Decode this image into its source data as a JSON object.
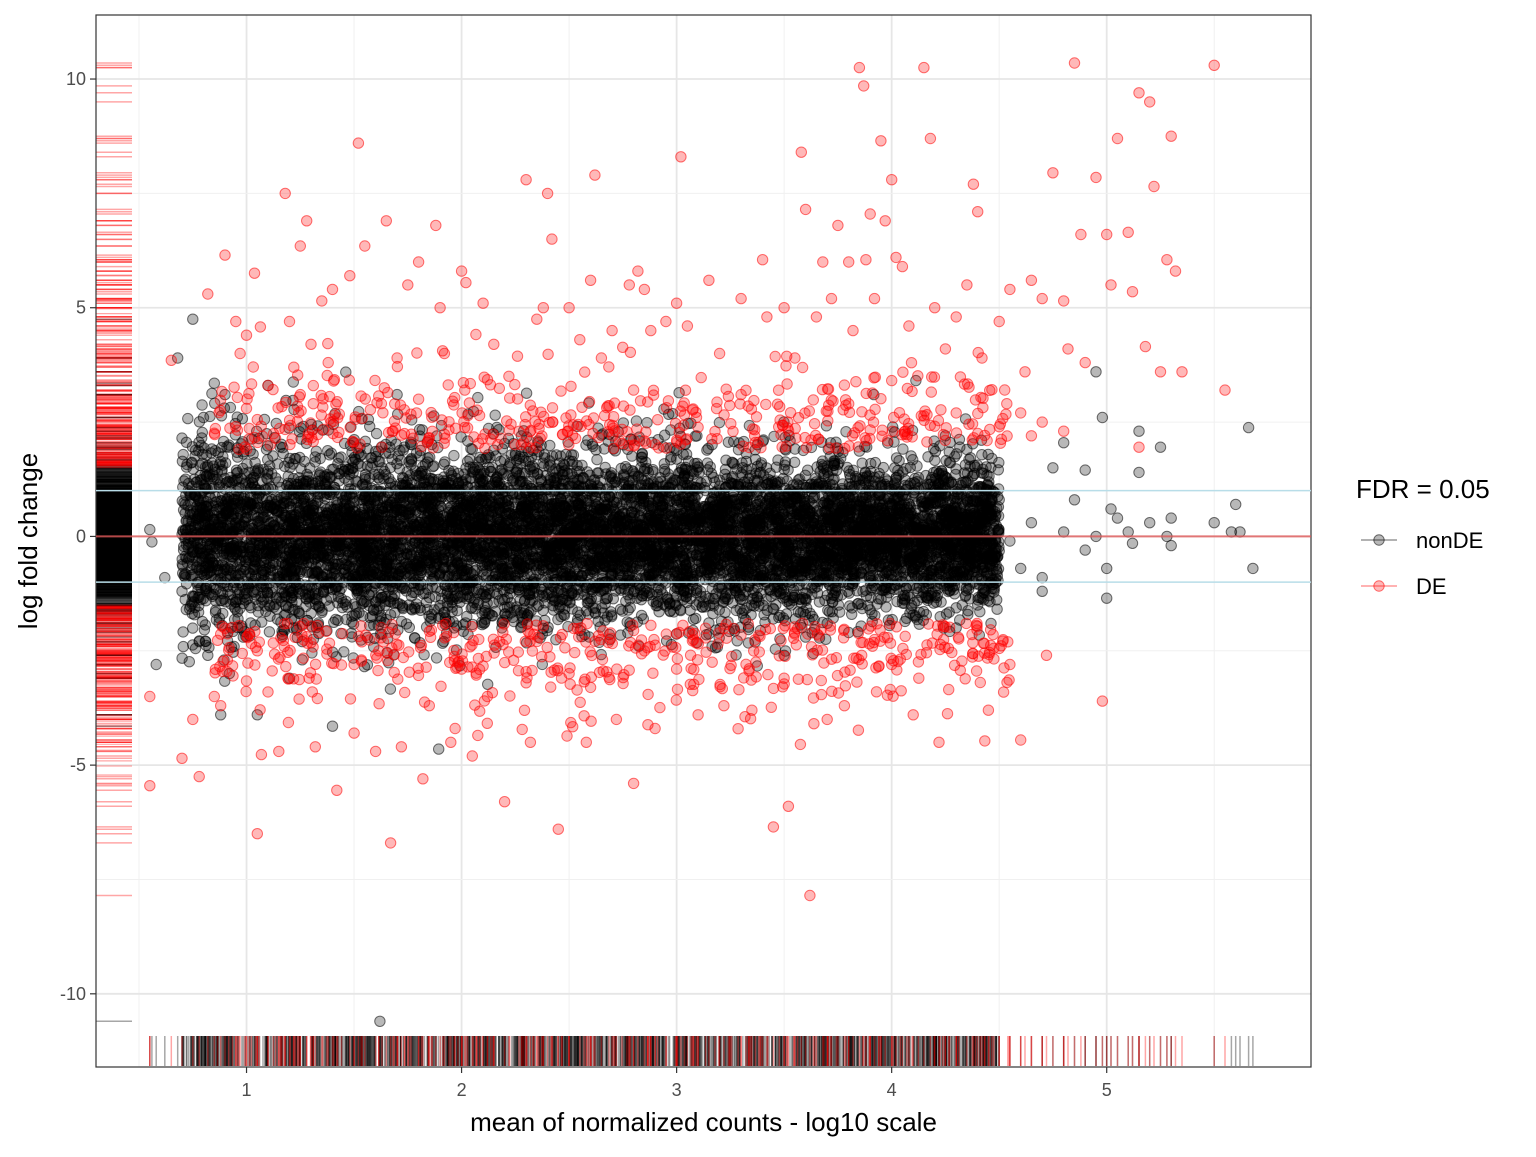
{
  "chart_data": {
    "type": "scatter",
    "xlabel": "mean of normalized counts - log10 scale",
    "ylabel": "log fold change",
    "xlim": [
      0.3,
      5.95
    ],
    "ylim": [
      -11.6,
      11.4
    ],
    "x_ticks": [
      1,
      2,
      3,
      4,
      5
    ],
    "y_ticks": [
      -10,
      -5,
      0,
      5,
      10
    ],
    "x_tick_labels": [
      "1",
      "2",
      "3",
      "4",
      "5"
    ],
    "y_tick_labels": [
      "-10",
      "-5",
      "0",
      "5",
      "10"
    ],
    "reference_lines": {
      "zero": {
        "y": 0,
        "color": "#e05a5a"
      },
      "threshold": {
        "y": [
          1,
          -1
        ],
        "color": "#b8dde8"
      }
    },
    "grid": true,
    "rugs": [
      "left",
      "bottom"
    ],
    "legend": {
      "title": "FDR = 0.05",
      "position": "right",
      "entries": [
        {
          "label": "nonDE",
          "color": "#000000"
        },
        {
          "label": "DE",
          "color": "#ff0000"
        }
      ]
    },
    "series": [
      {
        "name": "nonDE",
        "color": "#000000",
        "opacity": 0.28,
        "dense_band": {
          "x_range": [
            0.7,
            4.5
          ],
          "y_sd": 0.85,
          "count": 9000
        },
        "points": [
          [
            0.55,
            0.15
          ],
          [
            0.56,
            -0.12
          ],
          [
            0.58,
            -2.8
          ],
          [
            0.62,
            -0.9
          ],
          [
            0.68,
            3.9
          ],
          [
            0.7,
            2.15
          ],
          [
            0.72,
            -1.6
          ],
          [
            0.75,
            4.75
          ],
          [
            0.85,
            3.35
          ],
          [
            0.88,
            -3.9
          ],
          [
            0.92,
            -3.0
          ],
          [
            1.4,
            -4.15
          ],
          [
            1.62,
            -10.6
          ],
          [
            1.7,
            3.1
          ],
          [
            4.8,
            2.05
          ],
          [
            4.9,
            1.45
          ],
          [
            4.95,
            3.6
          ],
          [
            4.98,
            2.6
          ],
          [
            5.0,
            -0.7
          ],
          [
            5.0,
            -1.35
          ],
          [
            5.02,
            0.6
          ],
          [
            5.05,
            0.4
          ],
          [
            5.1,
            0.1
          ],
          [
            5.12,
            -0.15
          ],
          [
            5.15,
            2.3
          ],
          [
            5.15,
            1.4
          ],
          [
            5.2,
            0.3
          ],
          [
            5.25,
            1.95
          ],
          [
            5.28,
            0.0
          ],
          [
            5.3,
            0.4
          ],
          [
            5.3,
            -0.2
          ],
          [
            5.5,
            0.3
          ],
          [
            5.58,
            0.1
          ],
          [
            5.6,
            0.7
          ],
          [
            5.62,
            0.1
          ],
          [
            5.66,
            2.38
          ],
          [
            5.68,
            -0.7
          ],
          [
            4.6,
            -0.7
          ],
          [
            4.7,
            -0.9
          ],
          [
            4.7,
            -1.2
          ],
          [
            4.75,
            1.5
          ],
          [
            4.8,
            0.1
          ],
          [
            4.5,
            0.8
          ],
          [
            4.55,
            -0.1
          ],
          [
            4.65,
            0.3
          ],
          [
            4.85,
            0.8
          ],
          [
            4.9,
            -0.3
          ],
          [
            4.95,
            0.0
          ],
          [
            0.78,
            -2.3
          ],
          [
            0.8,
            2.6
          ],
          [
            0.82,
            -2.6
          ],
          [
            0.9,
            3.1
          ],
          [
            1.05,
            -3.9
          ],
          [
            1.1,
            3.3
          ],
          [
            1.2,
            -3.1
          ],
          [
            3.5,
            -2.6
          ],
          [
            3.6,
            -2.2
          ],
          [
            3.7,
            -1.9
          ],
          [
            3.8,
            -2.1
          ],
          [
            4.3,
            -2.0
          ],
          [
            4.2,
            -1.3
          ],
          [
            4.4,
            -1.5
          ],
          [
            4.45,
            -1.4
          ],
          [
            4.25,
            2.2
          ],
          [
            4.35,
            1.9
          ]
        ]
      },
      {
        "name": "DE",
        "color": "#ff0000",
        "opacity": 0.28,
        "points": [
          [
            0.55,
            -3.5
          ],
          [
            0.55,
            -5.45
          ],
          [
            0.65,
            3.85
          ],
          [
            0.7,
            -4.85
          ],
          [
            0.75,
            -4.0
          ],
          [
            0.78,
            -5.25
          ],
          [
            0.82,
            5.3
          ],
          [
            0.85,
            -3.5
          ],
          [
            0.88,
            -3.7
          ],
          [
            0.9,
            6.15
          ],
          [
            0.95,
            4.7
          ],
          [
            0.97,
            4.0
          ],
          [
            1.0,
            4.4
          ],
          [
            1.05,
            -6.5
          ],
          [
            1.1,
            -3.4
          ],
          [
            1.1,
            3.3
          ],
          [
            1.15,
            -4.7
          ],
          [
            1.18,
            7.5
          ],
          [
            1.2,
            4.7
          ],
          [
            1.22,
            3.7
          ],
          [
            1.25,
            6.35
          ],
          [
            1.28,
            6.9
          ],
          [
            1.3,
            4.2
          ],
          [
            1.32,
            -4.6
          ],
          [
            1.35,
            5.15
          ],
          [
            1.38,
            3.8
          ],
          [
            1.4,
            5.4
          ],
          [
            1.42,
            -5.55
          ],
          [
            1.48,
            5.7
          ],
          [
            1.5,
            -4.3
          ],
          [
            1.52,
            8.6
          ],
          [
            1.55,
            6.35
          ],
          [
            1.6,
            -4.7
          ],
          [
            1.65,
            6.9
          ],
          [
            1.67,
            -6.7
          ],
          [
            1.7,
            3.9
          ],
          [
            1.72,
            -4.6
          ],
          [
            1.75,
            5.5
          ],
          [
            1.8,
            6.0
          ],
          [
            1.82,
            -5.3
          ],
          [
            1.85,
            -3.7
          ],
          [
            1.88,
            6.8
          ],
          [
            1.9,
            5.0
          ],
          [
            1.92,
            4.0
          ],
          [
            1.95,
            -4.5
          ],
          [
            1.97,
            -4.2
          ],
          [
            2.0,
            5.8
          ],
          [
            2.02,
            5.55
          ],
          [
            2.05,
            -4.8
          ],
          [
            2.1,
            5.1
          ],
          [
            2.12,
            -3.5
          ],
          [
            2.15,
            4.2
          ],
          [
            2.2,
            -5.8
          ],
          [
            2.22,
            3.5
          ],
          [
            2.3,
            7.8
          ],
          [
            2.32,
            -4.5
          ],
          [
            2.35,
            4.75
          ],
          [
            2.38,
            5.0
          ],
          [
            2.4,
            7.5
          ],
          [
            2.42,
            6.5
          ],
          [
            2.45,
            -6.4
          ],
          [
            2.5,
            5.0
          ],
          [
            2.55,
            4.3
          ],
          [
            2.58,
            -4.5
          ],
          [
            2.6,
            5.6
          ],
          [
            2.62,
            7.9
          ],
          [
            2.65,
            3.9
          ],
          [
            2.7,
            4.5
          ],
          [
            2.72,
            -4.0
          ],
          [
            2.78,
            5.5
          ],
          [
            2.8,
            -5.4
          ],
          [
            2.82,
            5.8
          ],
          [
            2.85,
            5.4
          ],
          [
            2.88,
            4.5
          ],
          [
            2.9,
            -4.2
          ],
          [
            2.95,
            4.7
          ],
          [
            3.0,
            5.1
          ],
          [
            3.02,
            8.3
          ],
          [
            3.05,
            4.6
          ],
          [
            3.1,
            -3.9
          ],
          [
            3.15,
            5.6
          ],
          [
            3.2,
            4.0
          ],
          [
            3.22,
            -3.7
          ],
          [
            3.3,
            5.2
          ],
          [
            3.35,
            -3.8
          ],
          [
            3.4,
            6.05
          ],
          [
            3.42,
            4.8
          ],
          [
            3.45,
            -6.35
          ],
          [
            3.5,
            5.0
          ],
          [
            3.52,
            -5.9
          ],
          [
            3.55,
            3.9
          ],
          [
            3.58,
            8.4
          ],
          [
            3.6,
            7.15
          ],
          [
            3.62,
            -7.85
          ],
          [
            3.65,
            4.8
          ],
          [
            3.68,
            6.0
          ],
          [
            3.7,
            -4.0
          ],
          [
            3.72,
            5.2
          ],
          [
            3.75,
            6.8
          ],
          [
            3.78,
            -3.7
          ],
          [
            3.8,
            6.0
          ],
          [
            3.82,
            4.5
          ],
          [
            3.85,
            10.25
          ],
          [
            3.87,
            9.85
          ],
          [
            3.88,
            6.05
          ],
          [
            3.9,
            7.05
          ],
          [
            3.92,
            5.2
          ],
          [
            3.95,
            8.65
          ],
          [
            3.97,
            6.9
          ],
          [
            4.0,
            7.8
          ],
          [
            4.02,
            6.1
          ],
          [
            4.05,
            5.9
          ],
          [
            4.08,
            4.6
          ],
          [
            4.1,
            -3.9
          ],
          [
            4.15,
            10.25
          ],
          [
            4.18,
            8.7
          ],
          [
            4.2,
            5.0
          ],
          [
            4.22,
            -4.5
          ],
          [
            4.25,
            4.1
          ],
          [
            4.3,
            4.8
          ],
          [
            4.35,
            5.5
          ],
          [
            4.38,
            7.7
          ],
          [
            4.4,
            7.1
          ],
          [
            4.42,
            3.9
          ],
          [
            4.45,
            -3.8
          ],
          [
            4.5,
            4.7
          ],
          [
            4.55,
            5.4
          ],
          [
            4.6,
            -4.45
          ],
          [
            4.62,
            3.6
          ],
          [
            4.65,
            5.6
          ],
          [
            4.7,
            5.2
          ],
          [
            4.75,
            7.95
          ],
          [
            4.8,
            5.15
          ],
          [
            4.82,
            4.1
          ],
          [
            4.85,
            10.35
          ],
          [
            4.88,
            6.6
          ],
          [
            4.9,
            3.8
          ],
          [
            4.95,
            7.85
          ],
          [
            4.98,
            -3.6
          ],
          [
            5.0,
            6.6
          ],
          [
            5.02,
            5.5
          ],
          [
            5.05,
            8.7
          ],
          [
            5.1,
            6.65
          ],
          [
            5.12,
            5.35
          ],
          [
            5.15,
            9.7
          ],
          [
            5.18,
            4.15
          ],
          [
            5.2,
            9.5
          ],
          [
            5.22,
            7.65
          ],
          [
            5.25,
            3.6
          ],
          [
            5.28,
            6.05
          ],
          [
            5.3,
            8.75
          ],
          [
            5.32,
            5.8
          ],
          [
            5.35,
            3.6
          ],
          [
            5.5,
            10.3
          ],
          [
            5.55,
            3.2
          ],
          [
            5.15,
            1.95
          ],
          [
            4.55,
            -2.8
          ],
          [
            4.7,
            2.5
          ],
          [
            4.72,
            -2.6
          ],
          [
            4.8,
            2.3
          ],
          [
            4.6,
            2.7
          ],
          [
            4.0,
            -2.8
          ],
          [
            3.0,
            -2.9
          ],
          [
            2.5,
            -3.0
          ],
          [
            2.0,
            -2.9
          ],
          [
            1.5,
            -2.8
          ],
          [
            1.25,
            3.1
          ],
          [
            1.0,
            2.8
          ],
          [
            0.95,
            2.4
          ],
          [
            1.05,
            -2.5
          ],
          [
            2.3,
            -3.2
          ],
          [
            2.8,
            3.2
          ],
          [
            3.3,
            3.1
          ],
          [
            3.8,
            2.9
          ],
          [
            4.3,
            2.7
          ],
          [
            4.5,
            2.4
          ],
          [
            4.65,
            2.2
          ],
          [
            1.8,
            3.0
          ],
          [
            2.6,
            -3.3
          ],
          [
            3.5,
            -3.1
          ]
        ]
      }
    ]
  }
}
